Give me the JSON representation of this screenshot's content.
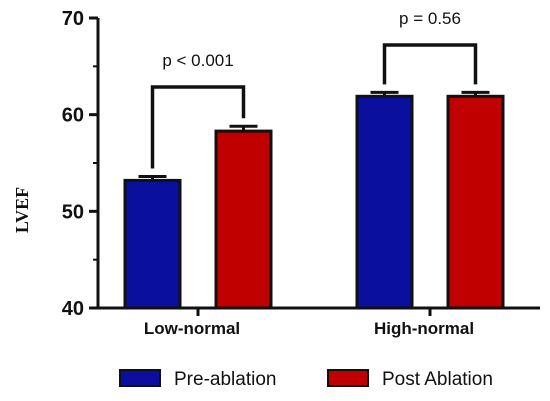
{
  "chart_data": {
    "type": "bar",
    "categories": [
      "Low-normal",
      "High-normal"
    ],
    "series": [
      {
        "name": "Pre-ablation",
        "color": "#0b0f9e",
        "values": [
          53.2,
          61.9
        ],
        "errors": [
          0.4,
          0.4
        ]
      },
      {
        "name": "Post Ablation",
        "color": "#c00000",
        "values": [
          58.3,
          61.9
        ],
        "errors": [
          0.5,
          0.4
        ]
      }
    ],
    "ylabel": "LVEF",
    "ylim": [
      40,
      70
    ],
    "yticks": [
      40,
      50,
      60,
      70
    ],
    "annotations": [
      {
        "category": "Low-normal",
        "label": "p < 0.001"
      },
      {
        "category": "High-normal",
        "label": "p = 0.56"
      }
    ],
    "legend_position": "bottom",
    "grid": false
  }
}
